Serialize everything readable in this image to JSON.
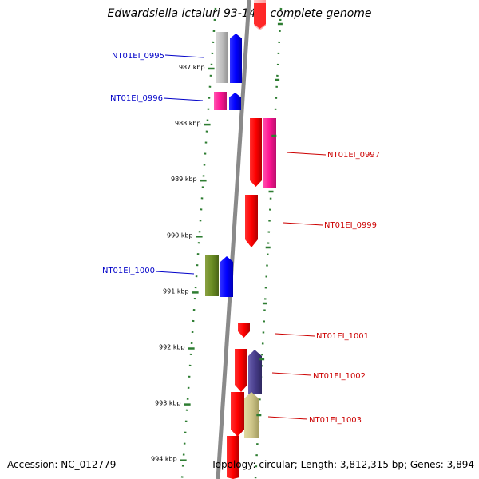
{
  "title": "Edwardsiella ictaluri 93-146, complete genome",
  "footer": {
    "accession": "Accession: NC_012779",
    "topology": "Topology: circular; Length: 3,812,315 bp; Genes: 3,894"
  },
  "ticks": [
    "987 kbp",
    "988 kbp",
    "989 kbp",
    "990 kbp",
    "991 kbp",
    "992 kbp",
    "993 kbp",
    "994 kbp"
  ],
  "left_genes": [
    "NT01EI_0995",
    "NT01EI_0996",
    "NT01EI_1000"
  ],
  "right_genes": [
    "NT01EI_0997",
    "NT01EI_0999",
    "NT01EI_1001",
    "NT01EI_1002",
    "NT01EI_1003"
  ],
  "colors": {
    "left_label": "#0000c8",
    "right_label": "#cc0000",
    "tick": "#2e7d32",
    "axis": "#888888"
  }
}
